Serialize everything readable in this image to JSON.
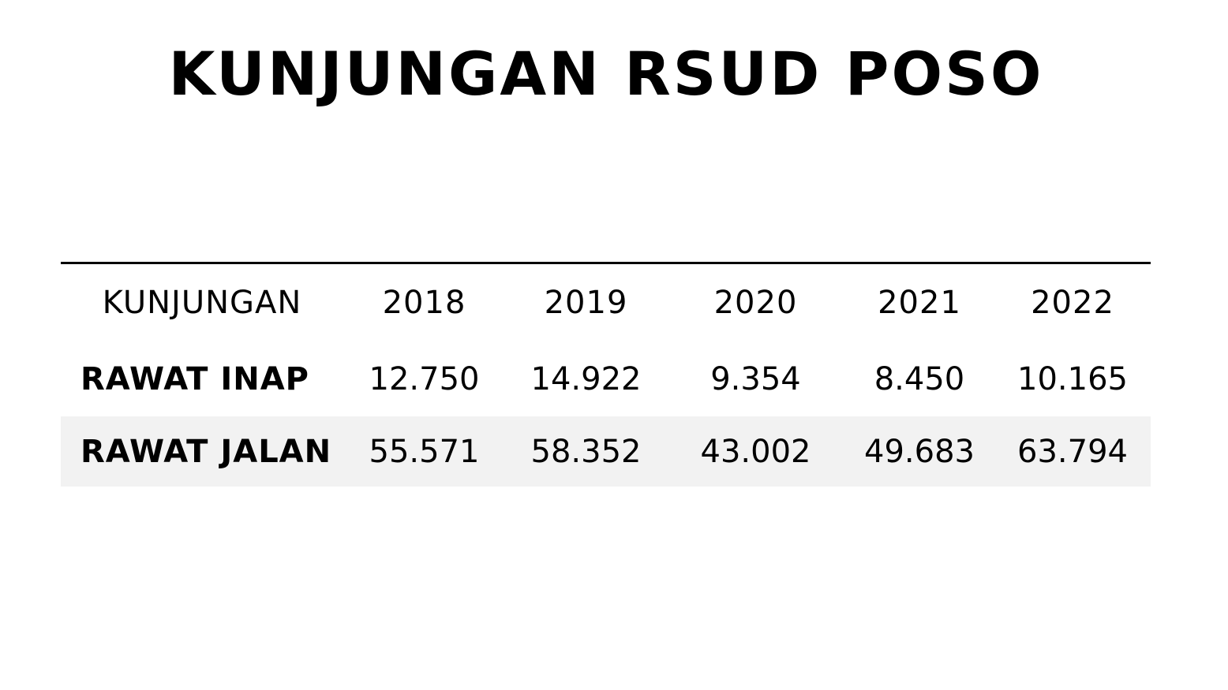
{
  "title": "KUNJUNGAN RSUD POSO",
  "table": {
    "header": [
      "KUNJUNGAN",
      "2018",
      "2019",
      "2020",
      "2021",
      "2022"
    ],
    "rows": [
      {
        "label": "RAWAT INAP",
        "values": [
          "12.750",
          "14.922",
          "9.354",
          "8.450",
          "10.165"
        ]
      },
      {
        "label": "RAWAT JALAN",
        "values": [
          "55.571",
          "58.352",
          "43.002",
          "49.683",
          "63.794"
        ]
      }
    ]
  },
  "colors": {
    "text": "#000000",
    "background": "#ffffff",
    "band": "#f2f2f2"
  }
}
